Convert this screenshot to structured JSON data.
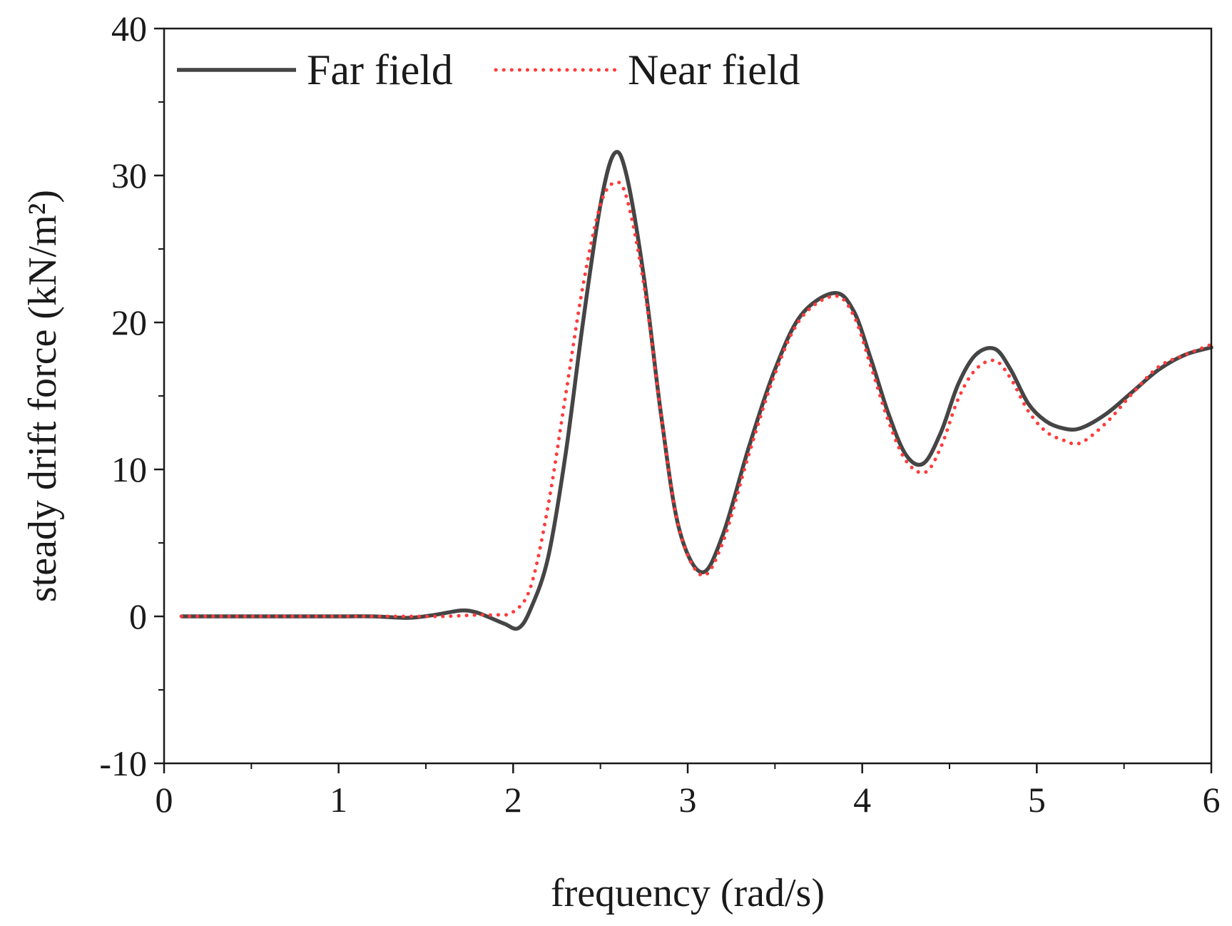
{
  "chart_data": {
    "type": "line",
    "title": "",
    "xlabel": "frequency (rad/s)",
    "ylabel": "steady drift force (kN/m²)",
    "xlim": [
      0,
      6
    ],
    "ylim": [
      -10,
      40
    ],
    "xticks": [
      0,
      1,
      2,
      3,
      4,
      5,
      6
    ],
    "xtick_labels": [
      "0",
      "1",
      "2",
      "3",
      "4",
      "5",
      "6"
    ],
    "yticks": [
      -10,
      0,
      10,
      20,
      30,
      40
    ],
    "ytick_labels": [
      "-10",
      "0",
      "10",
      "20",
      "30",
      "40"
    ],
    "grid": false,
    "legend_position": "top",
    "series": [
      {
        "name": "Far field",
        "color": "#454545",
        "style": "solid",
        "x": [
          0.1,
          0.5,
          1.0,
          1.2,
          1.4,
          1.55,
          1.7,
          1.78,
          1.85,
          1.95,
          2.03,
          2.1,
          2.2,
          2.3,
          2.4,
          2.5,
          2.58,
          2.65,
          2.75,
          2.85,
          2.95,
          3.08,
          3.2,
          3.35,
          3.5,
          3.65,
          3.84,
          3.95,
          4.05,
          4.15,
          4.25,
          4.35,
          4.45,
          4.55,
          4.65,
          4.76,
          4.85,
          4.95,
          5.05,
          5.15,
          5.25,
          5.4,
          5.55,
          5.7,
          5.85,
          6.0
        ],
        "y": [
          0.0,
          0.0,
          0.0,
          0.0,
          -0.1,
          0.1,
          0.4,
          0.3,
          0.0,
          -0.5,
          -0.8,
          0.5,
          4.0,
          11.0,
          20.0,
          28.0,
          31.5,
          30.0,
          23.0,
          13.5,
          6.0,
          3.0,
          5.5,
          11.5,
          16.8,
          20.5,
          22.0,
          20.8,
          17.5,
          13.8,
          11.0,
          10.4,
          12.5,
          15.8,
          17.8,
          18.2,
          16.8,
          14.5,
          13.3,
          12.8,
          12.8,
          13.8,
          15.3,
          16.8,
          17.8,
          18.3
        ]
      },
      {
        "name": "Near field",
        "color": "#ff3b3b",
        "style": "dotted",
        "x": [
          0.1,
          0.5,
          1.0,
          1.4,
          1.6,
          1.8,
          1.9,
          2.0,
          2.1,
          2.2,
          2.3,
          2.4,
          2.5,
          2.58,
          2.65,
          2.75,
          2.85,
          2.95,
          3.08,
          3.2,
          3.35,
          3.5,
          3.65,
          3.84,
          3.95,
          4.05,
          4.15,
          4.25,
          4.36,
          4.45,
          4.55,
          4.65,
          4.76,
          4.85,
          4.95,
          5.05,
          5.15,
          5.25,
          5.4,
          5.55,
          5.7,
          5.85,
          6.0
        ],
        "y": [
          0.0,
          0.0,
          0.0,
          0.0,
          0.0,
          0.1,
          0.1,
          0.3,
          2.0,
          7.5,
          15.0,
          22.5,
          28.0,
          29.5,
          28.5,
          22.5,
          13.5,
          6.0,
          2.8,
          5.0,
          11.0,
          16.5,
          20.3,
          21.8,
          20.5,
          17.0,
          13.3,
          10.6,
          9.8,
          11.5,
          14.8,
          16.8,
          17.4,
          16.2,
          14.0,
          12.6,
          12.0,
          11.8,
          13.2,
          15.2,
          17.0,
          17.8,
          18.5
        ]
      }
    ]
  }
}
